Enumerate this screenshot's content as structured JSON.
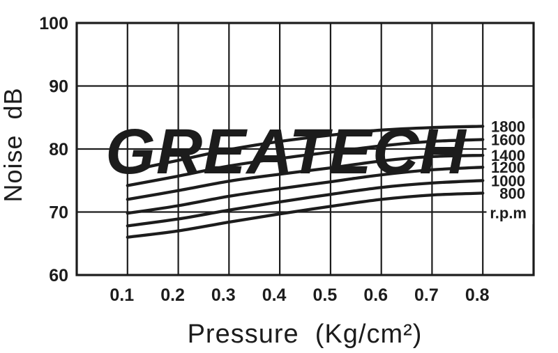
{
  "page": {
    "background": "#ffffff"
  },
  "chart_data": {
    "type": "line",
    "title": "",
    "xlabel": "Pressure  (Kg/cm²)",
    "ylabel": "Noise  dB",
    "watermark": "GREATECH",
    "x": [
      0.1,
      0.2,
      0.3,
      0.4,
      0.5,
      0.6,
      0.7,
      0.8
    ],
    "xlim": [
      0,
      0.9
    ],
    "ylim": [
      60,
      100
    ],
    "x_tick_labels": [
      "0.1",
      "0.2",
      "0.3",
      "0.4",
      "0.5",
      "0.6",
      "0.7",
      "0.8"
    ],
    "y_ticks": [
      100,
      90,
      80,
      70,
      60
    ],
    "grid": true,
    "legend_position": "right-inline",
    "ink_color": "#1c1c1c",
    "watermark_color": "#e9e9e9",
    "series_unit_label": "r.p.m",
    "series": [
      {
        "name": "1800",
        "values": [
          76.5,
          78.2,
          79.9,
          81.2,
          82.2,
          83.0,
          83.4,
          83.6
        ]
      },
      {
        "name": "1600",
        "values": [
          74.2,
          75.7,
          77.3,
          78.5,
          79.5,
          80.5,
          81.2,
          81.5
        ]
      },
      {
        "name": "1400",
        "values": [
          72.0,
          73.4,
          74.9,
          76.0,
          77.0,
          78.1,
          78.8,
          79.0
        ]
      },
      {
        "name": "1200",
        "values": [
          69.8,
          71.0,
          72.5,
          73.7,
          74.8,
          75.9,
          76.7,
          77.1
        ]
      },
      {
        "name": "1000",
        "values": [
          67.8,
          68.9,
          70.3,
          71.6,
          72.8,
          73.9,
          74.6,
          75.0
        ]
      },
      {
        "name": "800",
        "values": [
          66.0,
          67.0,
          68.4,
          69.7,
          70.9,
          72.0,
          72.7,
          73.0
        ]
      }
    ]
  }
}
